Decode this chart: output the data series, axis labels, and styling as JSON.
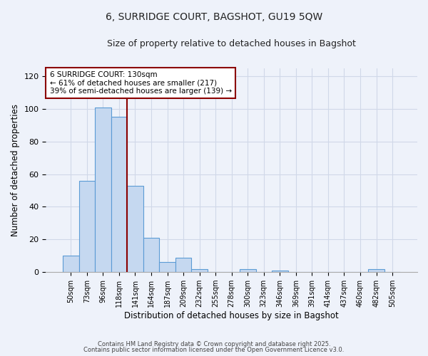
{
  "title_line1": "6, SURRIDGE COURT, BAGSHOT, GU19 5QW",
  "title_line2": "Size of property relative to detached houses in Bagshot",
  "xlabel": "Distribution of detached houses by size in Bagshot",
  "ylabel": "Number of detached properties",
  "bar_labels": [
    "50sqm",
    "73sqm",
    "96sqm",
    "118sqm",
    "141sqm",
    "164sqm",
    "187sqm",
    "209sqm",
    "232sqm",
    "255sqm",
    "278sqm",
    "300sqm",
    "323sqm",
    "346sqm",
    "369sqm",
    "391sqm",
    "414sqm",
    "437sqm",
    "460sqm",
    "482sqm",
    "505sqm"
  ],
  "bar_values": [
    10,
    56,
    101,
    95,
    53,
    21,
    6,
    9,
    2,
    0,
    0,
    2,
    0,
    1,
    0,
    0,
    0,
    0,
    0,
    2,
    0
  ],
  "bar_color": "#c5d8f0",
  "bar_edge_color": "#5b9bd5",
  "ylim": [
    0,
    125
  ],
  "yticks": [
    0,
    20,
    40,
    60,
    80,
    100,
    120
  ],
  "vline_x": 3.5,
  "vline_color": "#8b0000",
  "annotation_title": "6 SURRIDGE COURT: 130sqm",
  "annotation_line2": "← 61% of detached houses are smaller (217)",
  "annotation_line3": "39% of semi-detached houses are larger (139) →",
  "annotation_box_color": "#ffffff",
  "annotation_box_edge": "#8b0000",
  "footer_line1": "Contains HM Land Registry data © Crown copyright and database right 2025.",
  "footer_line2": "Contains public sector information licensed under the Open Government Licence v3.0.",
  "background_color": "#eef2fa",
  "grid_color": "#d0d8e8"
}
